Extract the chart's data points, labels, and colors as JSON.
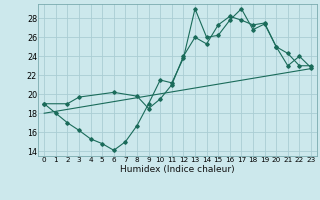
{
  "xlabel": "Humidex (Indice chaleur)",
  "background_color": "#cce8ec",
  "grid_color": "#aacdd4",
  "line_color": "#1a6b5a",
  "xlim": [
    -0.5,
    23.5
  ],
  "ylim": [
    13.5,
    29.5
  ],
  "xticks": [
    0,
    1,
    2,
    3,
    4,
    5,
    6,
    7,
    8,
    9,
    10,
    11,
    12,
    13,
    14,
    15,
    16,
    17,
    18,
    19,
    20,
    21,
    22,
    23
  ],
  "yticks": [
    14,
    16,
    18,
    20,
    22,
    24,
    26,
    28
  ],
  "line1": [
    [
      0,
      19.0
    ],
    [
      1,
      18.0
    ],
    [
      2,
      17.0
    ],
    [
      3,
      16.2
    ],
    [
      4,
      15.3
    ],
    [
      5,
      14.8
    ],
    [
      6,
      14.1
    ],
    [
      7,
      15.0
    ],
    [
      8,
      16.7
    ],
    [
      9,
      19.0
    ],
    [
      10,
      21.5
    ],
    [
      11,
      21.2
    ],
    [
      12,
      23.8
    ],
    [
      13,
      29.0
    ],
    [
      14,
      26.0
    ],
    [
      15,
      26.2
    ],
    [
      16,
      27.8
    ],
    [
      17,
      29.0
    ],
    [
      18,
      26.8
    ],
    [
      19,
      27.4
    ],
    [
      20,
      25.0
    ],
    [
      21,
      24.3
    ],
    [
      22,
      23.0
    ],
    [
      23,
      23.0
    ]
  ],
  "line2": [
    [
      0,
      19.0
    ],
    [
      2,
      19.0
    ],
    [
      3,
      19.7
    ],
    [
      6,
      20.2
    ],
    [
      8,
      19.8
    ],
    [
      9,
      18.5
    ],
    [
      10,
      19.5
    ],
    [
      11,
      21.0
    ],
    [
      12,
      24.0
    ],
    [
      13,
      26.0
    ],
    [
      14,
      25.3
    ],
    [
      15,
      27.3
    ],
    [
      16,
      28.2
    ],
    [
      17,
      27.8
    ],
    [
      18,
      27.3
    ],
    [
      19,
      27.5
    ],
    [
      20,
      25.0
    ],
    [
      21,
      23.0
    ],
    [
      22,
      24.0
    ],
    [
      23,
      22.8
    ]
  ],
  "line3": [
    [
      0,
      18.0
    ],
    [
      23,
      22.7
    ]
  ]
}
